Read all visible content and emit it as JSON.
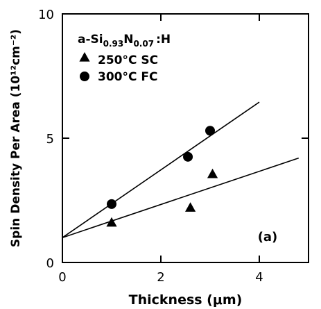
{
  "chart_data": {
    "type": "scatter",
    "title": "",
    "xlabel": "Thickness (μm)",
    "ylabel": "Spin Density Per Area (10¹²cm⁻²)",
    "xlim": [
      0,
      5
    ],
    "ylim": [
      0,
      10
    ],
    "x_ticks": [
      0,
      2,
      4
    ],
    "y_ticks": [
      0,
      5,
      10
    ],
    "x_tick_labels": [
      "0",
      "2",
      "4"
    ],
    "y_tick_labels": [
      "0",
      "5",
      "10"
    ],
    "grid": false,
    "legend": {
      "placement": "top-left",
      "header_base": "a-Si",
      "header_sub1": "0.93",
      "header_mid": "N",
      "header_sub2": "0.07",
      "header_tail": ":H"
    },
    "annotation": "(a)",
    "series": [
      {
        "name": "250°C SC",
        "marker": "triangle",
        "points": [
          {
            "x": 1.0,
            "y": 1.6
          },
          {
            "x": 2.6,
            "y": 2.2
          },
          {
            "x": 3.05,
            "y": 3.55
          }
        ],
        "fit_line": {
          "from": [
            0,
            1.0
          ],
          "to": [
            4.8,
            4.2
          ]
        }
      },
      {
        "name": "300°C FC",
        "marker": "circle",
        "points": [
          {
            "x": 1.0,
            "y": 2.35
          },
          {
            "x": 2.55,
            "y": 4.25
          },
          {
            "x": 3.0,
            "y": 5.3
          }
        ],
        "fit_line": {
          "from": [
            0,
            1.0
          ],
          "to": [
            4.0,
            6.45
          ]
        }
      }
    ]
  }
}
